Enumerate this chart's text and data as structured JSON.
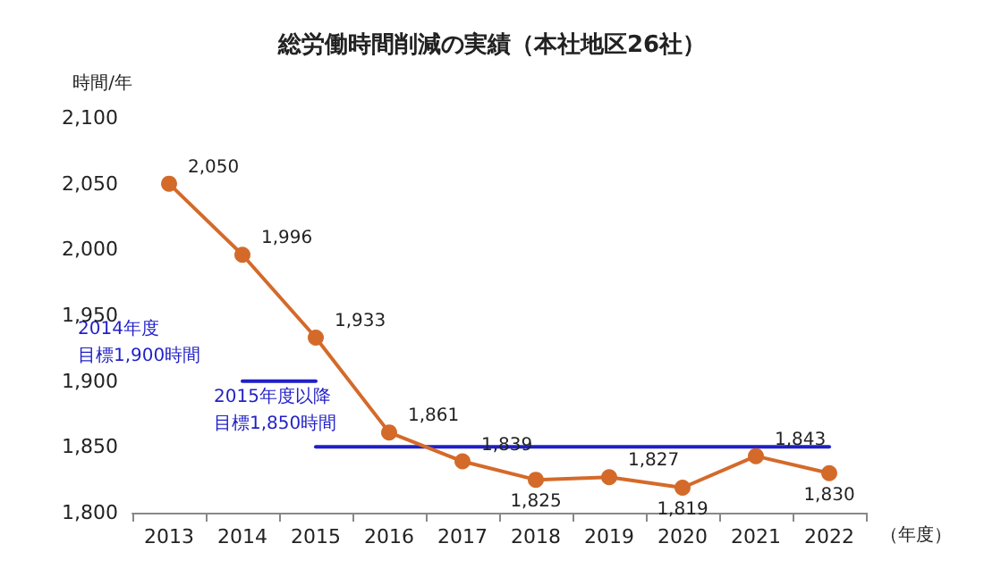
{
  "chart_data": {
    "type": "line",
    "title": "総労働時間削減の実績（本社地区26社）",
    "ylabel": "時間/年",
    "xlabel": "（年度）",
    "categories": [
      "2013",
      "2014",
      "2015",
      "2016",
      "2017",
      "2018",
      "2019",
      "2020",
      "2021",
      "2022"
    ],
    "series": [
      {
        "color": "#d46a2a",
        "values": [
          2050,
          1996,
          1933,
          1861,
          1839,
          1825,
          1827,
          1819,
          1843,
          1830
        ],
        "value_labels": [
          "2,050",
          "1,996",
          "1,933",
          "1,861",
          "1,839",
          "1,825",
          "1,827",
          "1,819",
          "1,843",
          "1,830"
        ]
      },
      {
        "color": "#1f1fc8",
        "marker": "none",
        "values": [
          null,
          1900,
          1900,
          null,
          null,
          null,
          null,
          null,
          null,
          null
        ]
      },
      {
        "color": "#1f1fc8",
        "marker": "none",
        "values": [
          null,
          null,
          1850,
          1850,
          1850,
          1850,
          1850,
          1850,
          1850,
          1850
        ]
      }
    ],
    "ylim": [
      1800,
      2100
    ],
    "yticks": [
      {
        "value": 1800,
        "label": "1,800"
      },
      {
        "value": 1850,
        "label": "1,850"
      },
      {
        "value": 1900,
        "label": "1,900"
      },
      {
        "value": 1950,
        "label": "1,950"
      },
      {
        "value": 2000,
        "label": "2,000"
      },
      {
        "value": 2050,
        "label": "2,050"
      },
      {
        "value": 2100,
        "label": "2,100"
      }
    ],
    "grid": false,
    "marker": "circle",
    "line_style": "solid",
    "annotations": [
      "2014年度",
      "目標1,900時間",
      "2015年度以降",
      "目標1,850時間"
    ]
  }
}
